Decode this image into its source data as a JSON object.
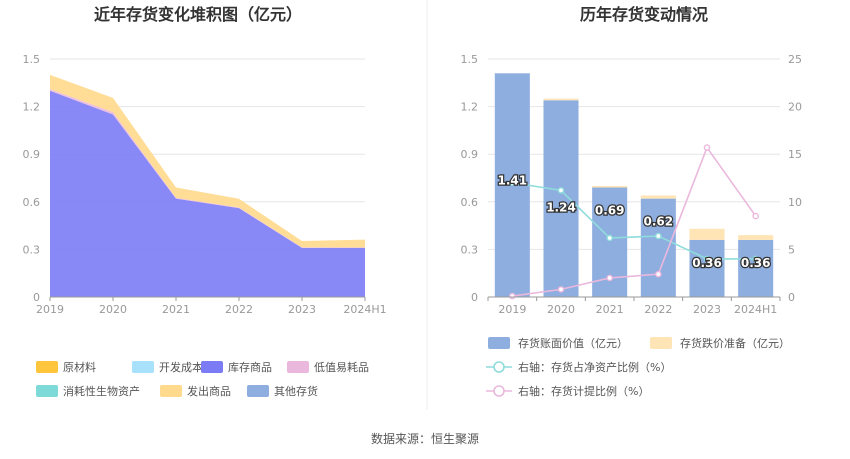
{
  "source_note": "数据来源：恒生聚源",
  "chart_data": [
    {
      "type": "area",
      "title": "近年存货变化堆积图（亿元）",
      "categories": [
        "2019",
        "2020",
        "2021",
        "2022",
        "2023",
        "2024H1"
      ],
      "ylim": [
        0,
        1.5
      ],
      "yticks": [
        "0",
        "0.3",
        "0.6",
        "0.9",
        "1.2",
        "1.5"
      ],
      "grid": true,
      "legend_position": "bottom",
      "series": [
        {
          "name": "原材料",
          "color": "#FFC53D",
          "values": [
            0,
            0,
            0,
            0,
            0,
            0
          ]
        },
        {
          "name": "开发成本",
          "color": "#A8E1FB",
          "values": [
            0,
            0,
            0,
            0,
            0,
            0
          ]
        },
        {
          "name": "库存商品",
          "color": "#7B7BF5",
          "values": [
            1.3,
            1.15,
            0.62,
            0.56,
            0.31,
            0.31
          ]
        },
        {
          "name": "低值易耗品",
          "color": "#EBB8DD",
          "values": [
            0.01,
            0.015,
            0.005,
            0.004,
            0.003,
            0.002
          ]
        },
        {
          "name": "消耗性生物资产",
          "color": "#7ED9D9",
          "values": [
            0,
            0,
            0,
            0,
            0,
            0
          ]
        },
        {
          "name": "发出商品",
          "color": "#FFD98C",
          "values": [
            0.09,
            0.09,
            0.065,
            0.055,
            0.04,
            0.05
          ]
        },
        {
          "name": "其他存货",
          "color": "#8EAEDF",
          "values": [
            0,
            0,
            0,
            0,
            0,
            0
          ]
        }
      ]
    },
    {
      "type": "bar",
      "title": "历年存货变动情况",
      "categories": [
        "2019",
        "2020",
        "2021",
        "2022",
        "2023",
        "2024H1"
      ],
      "ylim": [
        0,
        1.5
      ],
      "yticks": [
        "0",
        "0.3",
        "0.6",
        "0.9",
        "1.2",
        "1.5"
      ],
      "y2lim": [
        0,
        25
      ],
      "y2ticks": [
        "0",
        "5",
        "10",
        "15",
        "20",
        "25"
      ],
      "grid": true,
      "legend_position": "bottom",
      "series": [
        {
          "name": "存货账面价值（亿元）",
          "color": "#8EAEDF",
          "values": [
            1.41,
            1.24,
            0.69,
            0.62,
            0.36,
            0.36
          ],
          "labels": [
            "1.41",
            "1.24",
            "0.69",
            "0.62",
            "0.36",
            "0.36"
          ]
        },
        {
          "name": "存货跌价准备（亿元）",
          "color": "#FFE4B5",
          "values": [
            0,
            0.01,
            0.01,
            0.02,
            0.07,
            0.03
          ]
        },
        {
          "name": "右轴：存货占净资产比例（%）",
          "color": "#8FDCDC",
          "axis": "right",
          "values": [
            12,
            11.2,
            6.2,
            6.4,
            4,
            4
          ]
        },
        {
          "name": "右轴：存货计提比例（%）",
          "color": "#EBB8DD",
          "axis": "right",
          "values": [
            0.1,
            0.8,
            2,
            2.4,
            15.7,
            8.5
          ]
        }
      ]
    }
  ]
}
